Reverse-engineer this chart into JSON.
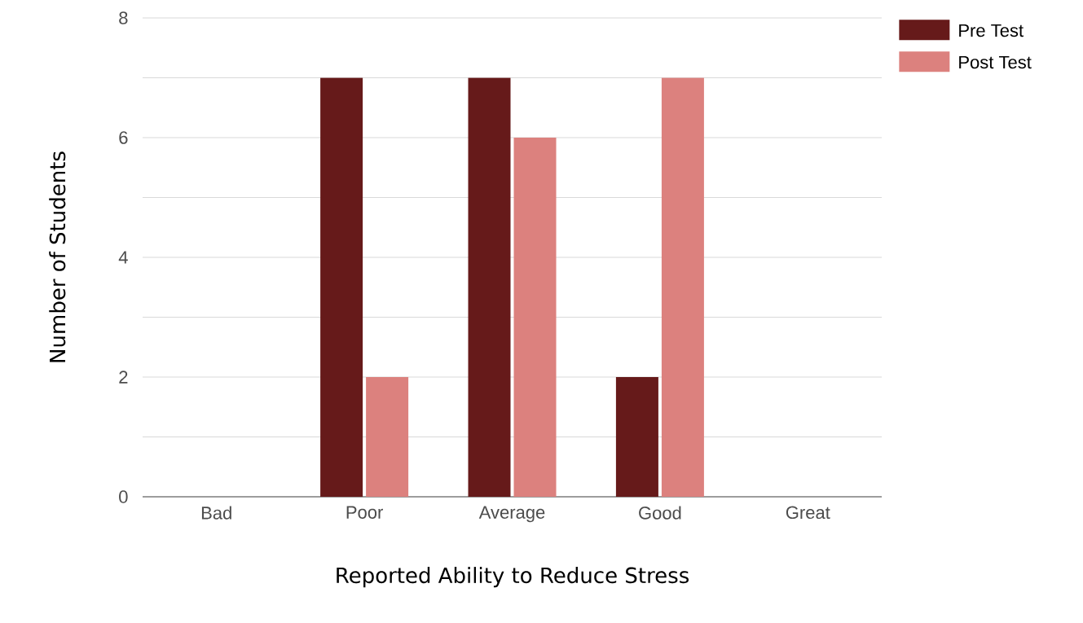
{
  "chart_data": {
    "type": "bar",
    "xlabel": "Reported Ability to Reduce Stress",
    "ylabel": "Number of Students",
    "categories": [
      "Bad",
      "Poor",
      "Average",
      "Good",
      "Great"
    ],
    "series": [
      {
        "name": "Pre Test",
        "color": "#661a1a",
        "values": [
          0,
          7,
          7,
          2,
          0
        ]
      },
      {
        "name": "Post Test",
        "color": "#dc817e",
        "values": [
          0,
          2,
          6,
          7,
          0
        ]
      }
    ],
    "ylim": [
      0,
      8
    ],
    "yticks": [
      0,
      {
        "value": 1,
        "label": null
      },
      2,
      {
        "value": 3,
        "label": null
      },
      4,
      {
        "value": 5,
        "label": null
      },
      6,
      {
        "value": 7,
        "label": null
      },
      8
    ],
    "grid": "y",
    "legend": "top right"
  }
}
